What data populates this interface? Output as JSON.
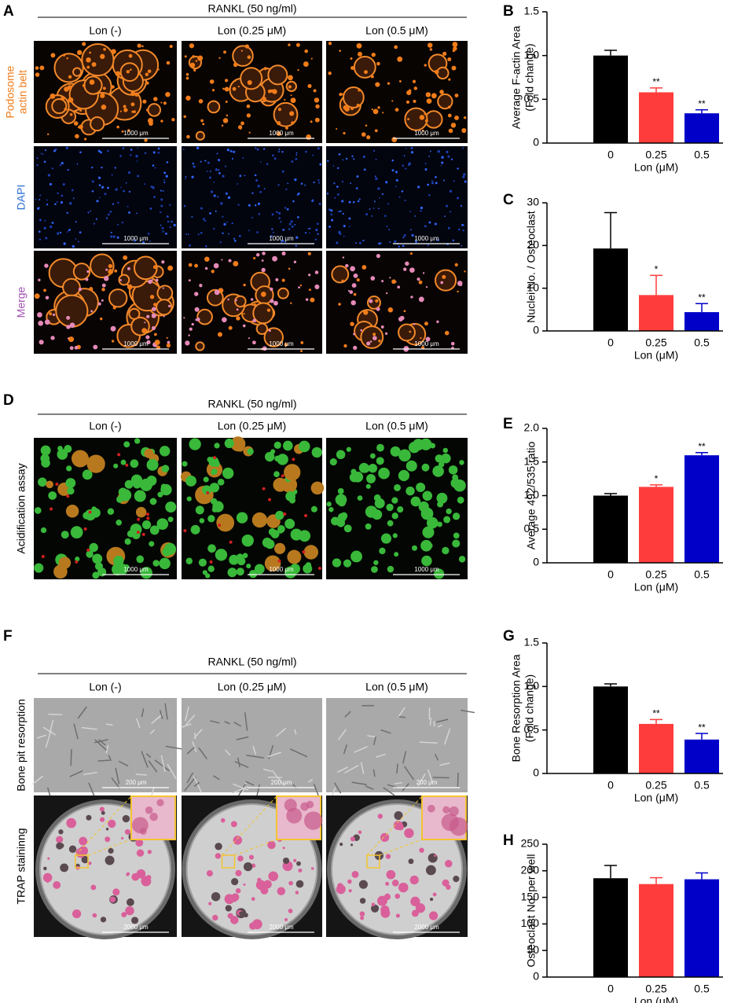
{
  "panels": [
    {
      "label": "A",
      "header": "RANKL (50 ng/ml)",
      "columns": [
        "Lon (-)",
        "Lon (0.25 μM)",
        "Lon (0.5 μM)"
      ],
      "rows": [
        {
          "label": [
            "Podosome",
            "actin belt"
          ],
          "color": "#f07c1a",
          "scale_bar": "1000 μm"
        },
        {
          "label": [
            "DAPI"
          ],
          "color": "#2d6fd6",
          "scale_bar": "1000 μm"
        },
        {
          "label": [
            "Merge"
          ],
          "color": "#a04fb0",
          "scale_bar": "1000 μm"
        }
      ]
    },
    {
      "label": "D",
      "header": "RANKL (50 ng/ml)",
      "columns": [
        "Lon (-)",
        "Lon (0.25 μM)",
        "Lon (0.5 μM)"
      ],
      "rows": [
        {
          "label": [
            "Acidification assay"
          ],
          "color": "#000000",
          "scale_bar": "1000 μm"
        }
      ]
    },
    {
      "label": "F",
      "header": "RANKL (50 ng/ml)",
      "columns": [
        "Lon (-)",
        "Lon (0.25 μM)",
        "Lon (0.5 μM)"
      ],
      "rows": [
        {
          "label": [
            "Bone pit resorption"
          ],
          "color": "#000000",
          "scale_bar": "200 μm"
        },
        {
          "label": [
            "TRAP staininng"
          ],
          "color": "#000000",
          "scale_bar": "2000 μm"
        }
      ]
    }
  ],
  "chart_data": [
    {
      "type": "bar",
      "label": "B",
      "categories": [
        "0",
        "0.25",
        "0.5"
      ],
      "values": [
        1.0,
        0.58,
        0.34
      ],
      "errors": [
        0.06,
        0.05,
        0.04
      ],
      "sig": [
        null,
        "**",
        "**"
      ],
      "colors": [
        "#000000",
        "#ff3c3c",
        "#0000c8"
      ],
      "ylim": [
        0,
        1.5
      ],
      "yticks": [
        0,
        0.5,
        {
          "value": 1,
          "label": "1.0"
        },
        1.5
      ],
      "xlabel": "Lon (μM)",
      "ylabel": [
        "Average F-actin Area",
        "(Fold change)"
      ]
    },
    {
      "type": "bar",
      "label": "C",
      "categories": [
        "0",
        "0.25",
        "0.5"
      ],
      "values": [
        19.3,
        8.4,
        4.4
      ],
      "errors": [
        8.4,
        4.6,
        2.0
      ],
      "sig": [
        null,
        "*",
        "**"
      ],
      "colors": [
        "#000000",
        "#ff3c3c",
        "#0000c8"
      ],
      "ylim": [
        0,
        30
      ],
      "yticks": [
        0,
        10,
        20,
        30
      ],
      "xlabel": "Lon (μM)",
      "ylabel": [
        "Nuclei No. / Osteoclast"
      ]
    },
    {
      "type": "bar",
      "label": "E",
      "categories": [
        "0",
        "0.25",
        "0.5"
      ],
      "values": [
        1.0,
        1.13,
        1.6
      ],
      "errors": [
        0.03,
        0.03,
        0.04
      ],
      "sig": [
        null,
        "*",
        "**"
      ],
      "colors": [
        "#000000",
        "#ff3c3c",
        "#0000c8"
      ],
      "ylim": [
        0,
        2
      ],
      "yticks": [
        0,
        0.5,
        {
          "value": 1,
          "label": "1.0"
        },
        1.5,
        {
          "value": 2,
          "label": "2.0"
        }
      ],
      "xlabel": "Lon (μM)",
      "ylabel": [
        "Average 492/535 ratio"
      ]
    },
    {
      "type": "bar",
      "label": "G",
      "categories": [
        "0",
        "0.25",
        "0.5"
      ],
      "values": [
        1.0,
        0.57,
        0.39
      ],
      "errors": [
        0.03,
        0.05,
        0.07
      ],
      "sig": [
        null,
        "**",
        "**"
      ],
      "colors": [
        "#000000",
        "#ff3c3c",
        "#0000c8"
      ],
      "ylim": [
        0,
        1.5
      ],
      "yticks": [
        0,
        0.5,
        {
          "value": 1,
          "label": "1.0"
        },
        1.5
      ],
      "xlabel": "Lon (μM)",
      "ylabel": [
        "Bone Resorption Area",
        "(Fold change)"
      ]
    },
    {
      "type": "bar",
      "label": "H",
      "categories": [
        "0",
        "0.25",
        "0.5"
      ],
      "values": [
        186,
        175,
        184
      ],
      "errors": [
        24,
        12,
        12
      ],
      "colors": [
        "#000000",
        "#ff3c3c",
        "#0000c8"
      ],
      "ylim": [
        0,
        250
      ],
      "yticks": [
        0,
        50,
        100,
        150,
        200,
        250
      ],
      "xlabel": "Lon (μM)",
      "ylabel": [
        "Osteoclast No. per well"
      ]
    }
  ]
}
